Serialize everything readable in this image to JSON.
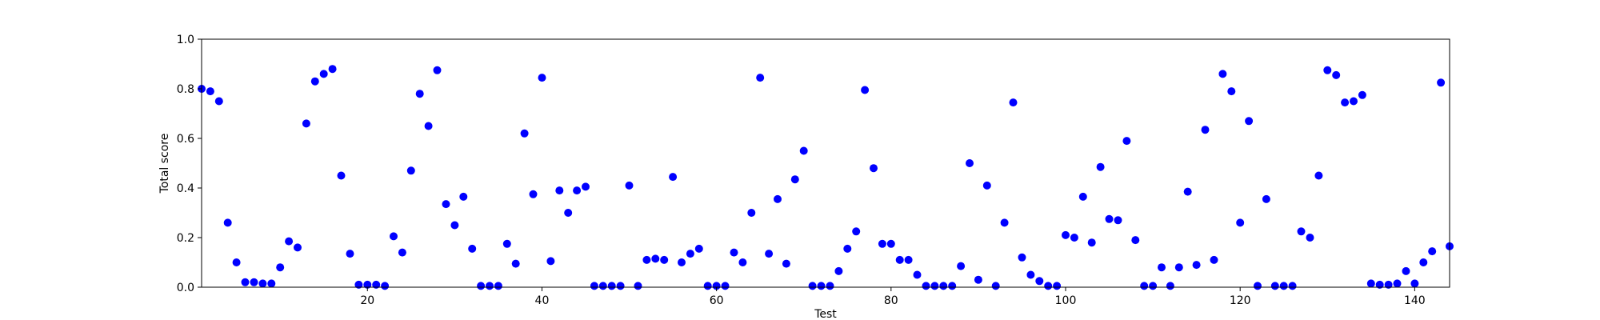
{
  "chart_data": {
    "type": "scatter",
    "title": "",
    "xlabel": "Test",
    "ylabel": "Total score",
    "xlim": [
      1,
      144
    ],
    "ylim": [
      0.0,
      1.0
    ],
    "xticks": [
      20,
      40,
      60,
      80,
      100,
      120,
      140
    ],
    "xtick_labels": [
      "20",
      "40",
      "60",
      "80",
      "100",
      "120",
      "140"
    ],
    "yticks": [
      0.0,
      0.2,
      0.4,
      0.6,
      0.8,
      1.0
    ],
    "ytick_labels": [
      "0.0",
      "0.2",
      "0.4",
      "0.6",
      "0.8",
      "1.0"
    ],
    "grid": false,
    "marker_color": "#0000ff",
    "series": [
      {
        "x": [
          1,
          2,
          3,
          4,
          5,
          6,
          7,
          8,
          9,
          10,
          11,
          12,
          13,
          14,
          15,
          16,
          17,
          18,
          19,
          20,
          21,
          22,
          23,
          24,
          25,
          26,
          27,
          28,
          29,
          30,
          31,
          32,
          33,
          34,
          35,
          36,
          37,
          38,
          39,
          40,
          41,
          42,
          43,
          44,
          45,
          46,
          47,
          48,
          49,
          50,
          51,
          52,
          53,
          54,
          55,
          56,
          57,
          58,
          59,
          60,
          61,
          62,
          63,
          64,
          65,
          66,
          67,
          68,
          69,
          70,
          71,
          72,
          73,
          74,
          75,
          76,
          77,
          78,
          79,
          80,
          81,
          82,
          83,
          84,
          85,
          86,
          87,
          88,
          89,
          90,
          91,
          92,
          93,
          94,
          95,
          96,
          97,
          98,
          99,
          100,
          101,
          102,
          103,
          104,
          105,
          106,
          107,
          108,
          109,
          110,
          111,
          112,
          113,
          114,
          115,
          116,
          117,
          118,
          119,
          120,
          121,
          122,
          123,
          124,
          125,
          126,
          127,
          128,
          129,
          130,
          131,
          132,
          133,
          134,
          135,
          136,
          137,
          138,
          139,
          140,
          141,
          142,
          143,
          144
        ],
        "y": [
          0.8,
          0.79,
          0.75,
          0.26,
          0.1,
          0.02,
          0.02,
          0.015,
          0.015,
          0.08,
          0.185,
          0.16,
          0.66,
          0.83,
          0.86,
          0.88,
          0.45,
          0.135,
          0.01,
          0.01,
          0.01,
          0.005,
          0.205,
          0.14,
          0.47,
          0.78,
          0.65,
          0.875,
          0.335,
          0.25,
          0.365,
          0.155,
          0.005,
          0.005,
          0.005,
          0.175,
          0.095,
          0.62,
          0.375,
          0.845,
          0.105,
          0.39,
          0.3,
          0.39,
          0.405,
          0.005,
          0.005,
          0.005,
          0.005,
          0.41,
          0.005,
          0.11,
          0.115,
          0.11,
          0.445,
          0.1,
          0.135,
          0.155,
          0.005,
          0.005,
          0.005,
          0.14,
          0.1,
          0.3,
          0.845,
          0.135,
          0.355,
          0.095,
          0.435,
          0.55,
          0.005,
          0.005,
          0.005,
          0.065,
          0.155,
          0.225,
          0.795,
          0.48,
          0.175,
          0.175,
          0.11,
          0.11,
          0.05,
          0.005,
          0.005,
          0.005,
          0.005,
          0.085,
          0.5,
          0.03,
          0.41,
          0.005,
          0.26,
          0.745,
          0.12,
          0.05,
          0.025,
          0.005,
          0.005,
          0.21,
          0.2,
          0.365,
          0.18,
          0.485,
          0.275,
          0.27,
          0.59,
          0.19,
          0.005,
          0.005,
          0.08,
          0.005,
          0.08,
          0.385,
          0.09,
          0.635,
          0.11,
          0.86,
          0.79,
          0.26,
          0.67,
          0.005,
          0.355,
          0.005,
          0.005,
          0.005,
          0.225,
          0.2,
          0.45,
          0.875,
          0.855,
          0.745,
          0.75,
          0.775,
          0.015,
          0.01,
          0.01,
          0.015,
          0.065,
          0.015,
          0.1,
          0.145,
          0.825,
          0.165
        ]
      }
    ]
  }
}
